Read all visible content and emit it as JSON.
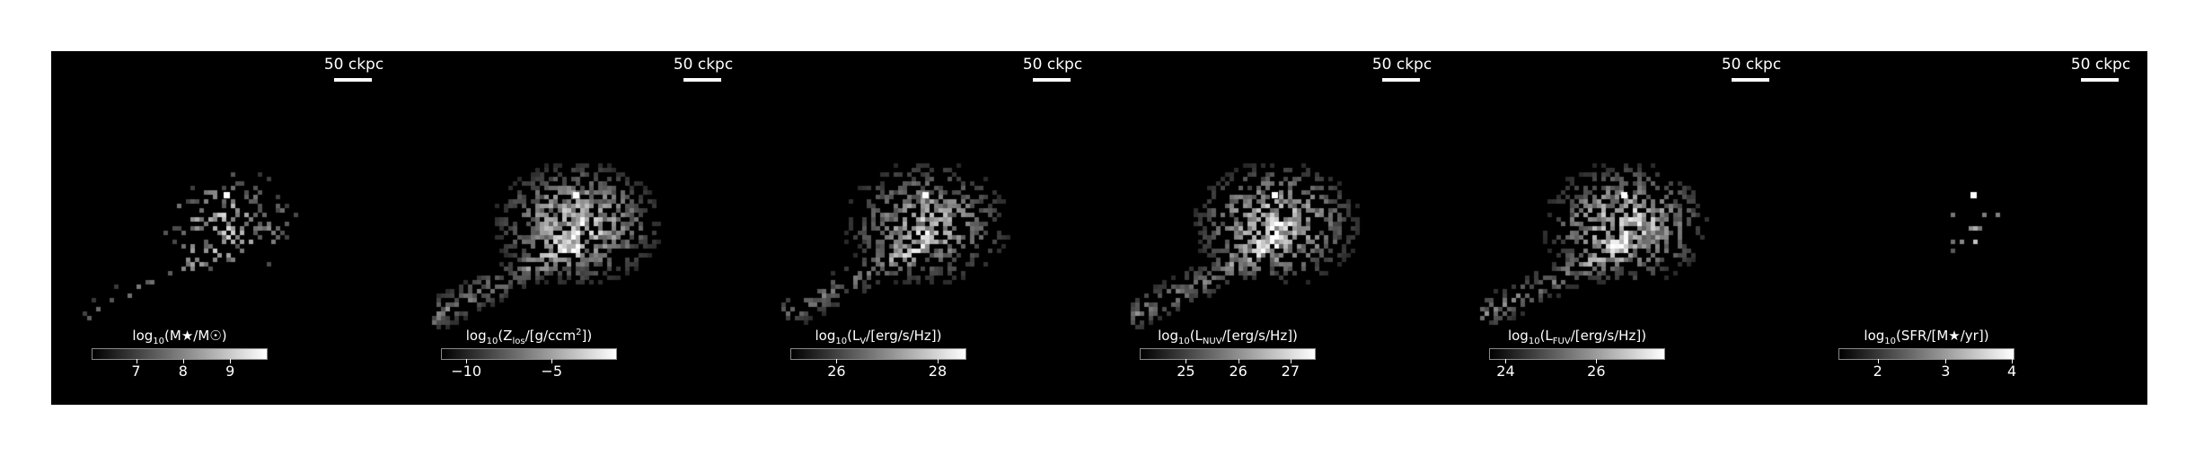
{
  "figure": {
    "panels": [
      {
        "name": "stellar-mass",
        "scalebar": "50 ckpc",
        "colorbar": {
          "label_pre": "log",
          "label_sub": "10",
          "label_post": "(M★/M☉)",
          "ticks": [
            {
              "label": "7",
              "frac": 0.25
            },
            {
              "label": "8",
              "frac": 0.52
            },
            {
              "label": "9",
              "frac": 0.79
            }
          ]
        },
        "sparsity": 0.55,
        "brightness": 0.85
      },
      {
        "name": "metallicity",
        "scalebar": "50 ckpc",
        "colorbar": {
          "label_pre": "log",
          "label_sub": "10",
          "label_post": "(Z",
          "label_sub2": "los",
          "label_post2": "/[g/ccm",
          "label_sup": "2",
          "label_post3": "])",
          "ticks": [
            {
              "label": "−10",
              "frac": 0.14
            },
            {
              "label": "−5",
              "frac": 0.63
            }
          ]
        },
        "sparsity": 0.15,
        "brightness": 1.0
      },
      {
        "name": "v-band-luminosity",
        "scalebar": "50 ckpc",
        "colorbar": {
          "label_pre": "log",
          "label_sub": "10",
          "label_post": "(L",
          "label_sub2": "V",
          "label_post2": "/[erg/s/Hz])",
          "ticks": [
            {
              "label": "26",
              "frac": 0.26
            },
            {
              "label": "28",
              "frac": 0.84
            }
          ]
        },
        "sparsity": 0.25,
        "brightness": 0.85
      },
      {
        "name": "nuv-luminosity",
        "scalebar": "50 ckpc",
        "colorbar": {
          "label_pre": "log",
          "label_sub": "10",
          "label_post": "(L",
          "label_sub2": "NUV",
          "label_post2": "/[erg/s/Hz])",
          "ticks": [
            {
              "label": "25",
              "frac": 0.26
            },
            {
              "label": "26",
              "frac": 0.56
            },
            {
              "label": "27",
              "frac": 0.86
            }
          ]
        },
        "sparsity": 0.2,
        "brightness": 1.0
      },
      {
        "name": "fuv-luminosity",
        "scalebar": "50 ckpc",
        "colorbar": {
          "label_pre": "log",
          "label_sub": "10",
          "label_post": "(L",
          "label_sub2": "FUV",
          "label_post2": "/[erg/s/Hz])",
          "ticks": [
            {
              "label": "24",
              "frac": 0.09
            },
            {
              "label": "26",
              "frac": 0.61
            }
          ]
        },
        "sparsity": 0.2,
        "brightness": 1.0
      },
      {
        "name": "star-formation-rate",
        "scalebar": "50 ckpc",
        "colorbar": {
          "label_pre": "log",
          "label_sub": "10",
          "label_post": "(SFR/[M★/yr])",
          "ticks": [
            {
              "label": "2",
              "frac": 0.22
            },
            {
              "label": "3",
              "frac": 0.61
            },
            {
              "label": "4",
              "frac": 0.99
            }
          ]
        },
        "sparsity": 0.8,
        "brightness": 0.6
      }
    ]
  }
}
